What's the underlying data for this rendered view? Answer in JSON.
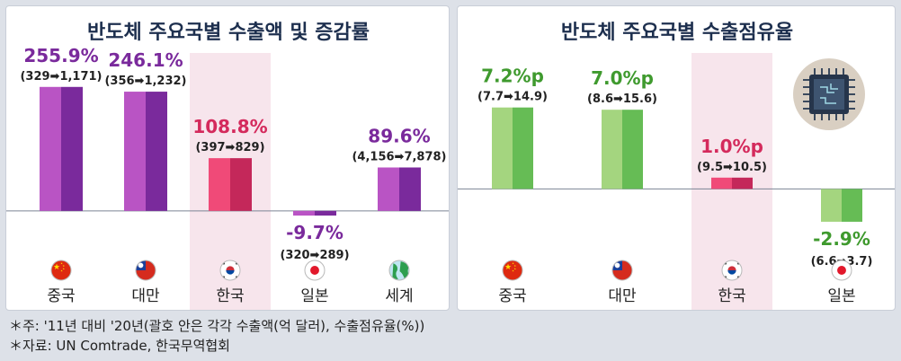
{
  "notes": [
    "＊주: '11년 대비 '20년(괄호 안은 각각 수출액(억 달러), 수출점유율(%))",
    "＊자료: UN Comtrade, 한국무역협회"
  ],
  "colors": {
    "purple_light": "#b954c4",
    "purple_dark": "#7a2a9c",
    "purple_text": "#7a2a9c",
    "green_light": "#a4d57f",
    "green_dark": "#66bc55",
    "green_text": "#3f9a2e",
    "red_light": "#f04a78",
    "red_dark": "#c4285a",
    "red_text": "#d42a5c",
    "highlight_band": "#f7e5ec",
    "title_text": "#1d2f4e"
  },
  "chart_data": [
    {
      "type": "bar",
      "title": "반도체 주요국별 수출액 및 증감률",
      "categories": [
        "중국",
        "대만",
        "한국",
        "일본",
        "세계"
      ],
      "flag_icons": [
        "china-flag-icon",
        "taiwan-flag-icon",
        "korea-flag-icon",
        "japan-flag-icon",
        "globe-icon"
      ],
      "values": [
        255.9,
        246.1,
        108.8,
        -9.7,
        89.6
      ],
      "value_labels": [
        "255.9%",
        "246.1%",
        "108.8%",
        "-9.7%",
        "89.6%"
      ],
      "sub_labels": [
        "(329➡1,171)",
        "(356➡1,232)",
        "(397➡829)",
        "(320➡289)",
        "(4,156➡7,878)"
      ],
      "highlight_index": 2,
      "ylim": [
        -30,
        300
      ]
    },
    {
      "type": "bar",
      "title": "반도체 주요국별 수출점유율",
      "categories": [
        "중국",
        "대만",
        "한국",
        "일본"
      ],
      "flag_icons": [
        "china-flag-icon",
        "taiwan-flag-icon",
        "korea-flag-icon",
        "japan-flag-icon"
      ],
      "values": [
        7.2,
        7.0,
        1.0,
        -2.9
      ],
      "value_labels": [
        "7.2%p",
        "7.0%p",
        "1.0%p",
        "-2.9%"
      ],
      "sub_labels": [
        "(7.7➡14.9)",
        "(8.6➡15.6)",
        "(9.5➡10.5)",
        "(6.6➡3.7)"
      ],
      "highlight_index": 2,
      "ylim": [
        -6,
        9
      ],
      "decoration_icon": "semiconductor-chip-icon"
    }
  ]
}
